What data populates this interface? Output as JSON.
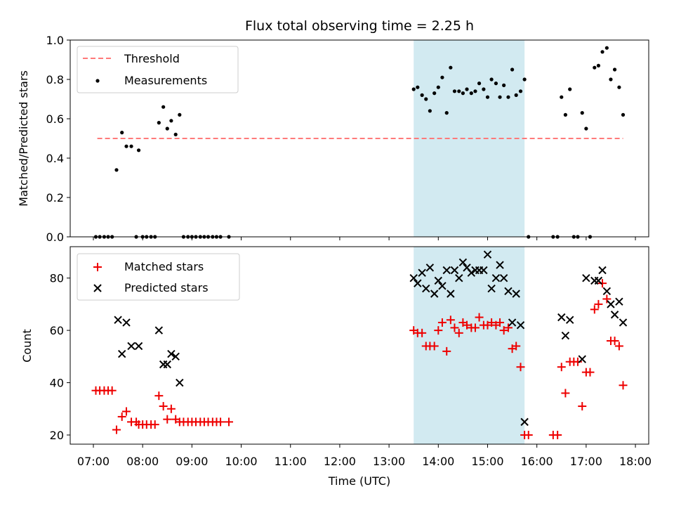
{
  "chart_data": {
    "title": "Flux total observing time = 2.25 h",
    "xlabel": "Time (UTC)",
    "x_ticks": [
      "07:00",
      "08:00",
      "09:00",
      "10:00",
      "11:00",
      "12:00",
      "13:00",
      "14:00",
      "15:00",
      "16:00",
      "17:00",
      "18:00"
    ],
    "x_range_hours": [
      6.53,
      18.27
    ],
    "shaded_span_hours": [
      13.5,
      15.75
    ],
    "colors": {
      "threshold": "#ff7a7a",
      "measurement": "#000000",
      "matched": "#ee0000",
      "predicted": "#000000",
      "span": "#add8e6"
    },
    "panels": [
      {
        "type": "scatter",
        "ylabel": "Matched/Predicted stars",
        "ylim": [
          0,
          1.0
        ],
        "y_ticks": [
          0.0,
          0.2,
          0.4,
          0.6,
          0.8,
          1.0
        ],
        "y_tick_labels": [
          "0.0",
          "0.2",
          "0.4",
          "0.6",
          "0.8",
          "1.0"
        ],
        "legend": [
          "Threshold",
          "Measurements"
        ],
        "threshold": {
          "name": "Threshold",
          "y": 0.5,
          "x_from": 7.08,
          "x_to": 17.75
        },
        "series": [
          {
            "name": "Measurements",
            "points": [
              [
                7.05,
                0
              ],
              [
                7.13,
                0
              ],
              [
                7.22,
                0
              ],
              [
                7.3,
                0
              ],
              [
                7.38,
                0
              ],
              [
                7.47,
                0.34
              ],
              [
                7.58,
                0.53
              ],
              [
                7.67,
                0.46
              ],
              [
                7.77,
                0.46
              ],
              [
                7.87,
                0
              ],
              [
                7.92,
                0.44
              ],
              [
                8.0,
                0
              ],
              [
                8.08,
                0
              ],
              [
                8.17,
                0
              ],
              [
                8.25,
                0
              ],
              [
                8.33,
                0.58
              ],
              [
                8.42,
                0.66
              ],
              [
                8.5,
                0.55
              ],
              [
                8.58,
                0.59
              ],
              [
                8.67,
                0.52
              ],
              [
                8.75,
                0.62
              ],
              [
                8.83,
                0
              ],
              [
                8.92,
                0
              ],
              [
                9.0,
                0
              ],
              [
                9.08,
                0
              ],
              [
                9.17,
                0
              ],
              [
                9.25,
                0
              ],
              [
                9.33,
                0
              ],
              [
                9.42,
                0
              ],
              [
                9.5,
                0
              ],
              [
                9.58,
                0
              ],
              [
                9.75,
                0
              ],
              [
                13.5,
                0.75
              ],
              [
                13.58,
                0.76
              ],
              [
                13.67,
                0.72
              ],
              [
                13.75,
                0.7
              ],
              [
                13.83,
                0.64
              ],
              [
                13.92,
                0.73
              ],
              [
                14.0,
                0.76
              ],
              [
                14.08,
                0.81
              ],
              [
                14.17,
                0.63
              ],
              [
                14.25,
                0.86
              ],
              [
                14.33,
                0.74
              ],
              [
                14.42,
                0.74
              ],
              [
                14.5,
                0.73
              ],
              [
                14.58,
                0.75
              ],
              [
                14.67,
                0.73
              ],
              [
                14.75,
                0.74
              ],
              [
                14.83,
                0.78
              ],
              [
                14.92,
                0.75
              ],
              [
                15.0,
                0.71
              ],
              [
                15.08,
                0.8
              ],
              [
                15.17,
                0.78
              ],
              [
                15.25,
                0.71
              ],
              [
                15.33,
                0.77
              ],
              [
                15.42,
                0.71
              ],
              [
                15.5,
                0.85
              ],
              [
                15.58,
                0.72
              ],
              [
                15.67,
                0.74
              ],
              [
                15.75,
                0.8
              ],
              [
                15.83,
                0
              ],
              [
                16.33,
                0
              ],
              [
                16.42,
                0
              ],
              [
                16.5,
                0.71
              ],
              [
                16.58,
                0.62
              ],
              [
                16.67,
                0.75
              ],
              [
                16.75,
                0
              ],
              [
                16.83,
                0
              ],
              [
                16.92,
                0.63
              ],
              [
                17.0,
                0.55
              ],
              [
                17.08,
                0
              ],
              [
                17.17,
                0.86
              ],
              [
                17.25,
                0.87
              ],
              [
                17.33,
                0.94
              ],
              [
                17.42,
                0.96
              ],
              [
                17.5,
                0.8
              ],
              [
                17.58,
                0.85
              ],
              [
                17.67,
                0.76
              ],
              [
                17.75,
                0.62
              ]
            ]
          }
        ]
      },
      {
        "type": "scatter",
        "ylabel": "Count",
        "ylim": [
          16.5,
          92
        ],
        "y_ticks": [
          20,
          40,
          60,
          80
        ],
        "y_tick_labels": [
          "20",
          "40",
          "60",
          "80"
        ],
        "legend": [
          "Matched stars",
          "Predicted stars"
        ],
        "series": [
          {
            "name": "Matched stars",
            "points": [
              [
                7.05,
                37
              ],
              [
                7.13,
                37
              ],
              [
                7.22,
                37
              ],
              [
                7.3,
                37
              ],
              [
                7.38,
                37
              ],
              [
                7.47,
                22
              ],
              [
                7.58,
                27
              ],
              [
                7.67,
                29
              ],
              [
                7.77,
                25
              ],
              [
                7.87,
                25
              ],
              [
                7.92,
                24
              ],
              [
                8.0,
                24
              ],
              [
                8.08,
                24
              ],
              [
                8.17,
                24
              ],
              [
                8.25,
                24
              ],
              [
                8.33,
                35
              ],
              [
                8.42,
                31
              ],
              [
                8.5,
                26
              ],
              [
                8.58,
                30
              ],
              [
                8.67,
                26
              ],
              [
                8.75,
                25
              ],
              [
                8.83,
                25
              ],
              [
                8.92,
                25
              ],
              [
                9.0,
                25
              ],
              [
                9.08,
                25
              ],
              [
                9.17,
                25
              ],
              [
                9.25,
                25
              ],
              [
                9.33,
                25
              ],
              [
                9.42,
                25
              ],
              [
                9.5,
                25
              ],
              [
                9.58,
                25
              ],
              [
                9.75,
                25
              ],
              [
                13.5,
                60
              ],
              [
                13.58,
                59
              ],
              [
                13.67,
                59
              ],
              [
                13.75,
                54
              ],
              [
                13.83,
                54
              ],
              [
                13.92,
                54
              ],
              [
                14.0,
                60
              ],
              [
                14.08,
                63
              ],
              [
                14.17,
                52
              ],
              [
                14.25,
                64
              ],
              [
                14.33,
                61
              ],
              [
                14.42,
                59
              ],
              [
                14.5,
                63
              ],
              [
                14.58,
                62
              ],
              [
                14.67,
                61
              ],
              [
                14.75,
                61
              ],
              [
                14.83,
                65
              ],
              [
                14.92,
                62
              ],
              [
                15.0,
                62
              ],
              [
                15.08,
                63
              ],
              [
                15.17,
                62
              ],
              [
                15.25,
                63
              ],
              [
                15.33,
                60
              ],
              [
                15.42,
                61
              ],
              [
                15.5,
                53
              ],
              [
                15.58,
                54
              ],
              [
                15.67,
                46
              ],
              [
                15.75,
                20
              ],
              [
                15.83,
                20
              ],
              [
                16.33,
                20
              ],
              [
                16.42,
                20
              ],
              [
                16.5,
                46
              ],
              [
                16.58,
                36
              ],
              [
                16.67,
                48
              ],
              [
                16.75,
                48
              ],
              [
                16.83,
                48
              ],
              [
                16.92,
                31
              ],
              [
                17.0,
                44
              ],
              [
                17.08,
                44
              ],
              [
                17.17,
                68
              ],
              [
                17.25,
                70
              ],
              [
                17.33,
                78
              ],
              [
                17.42,
                72
              ],
              [
                17.5,
                56
              ],
              [
                17.58,
                56
              ],
              [
                17.67,
                54
              ],
              [
                17.75,
                39
              ]
            ]
          },
          {
            "name": "Predicted stars",
            "points": [
              [
                7.5,
                64
              ],
              [
                7.58,
                51
              ],
              [
                7.67,
                63
              ],
              [
                7.77,
                54
              ],
              [
                7.92,
                54
              ],
              [
                8.33,
                60
              ],
              [
                8.42,
                47
              ],
              [
                8.5,
                47
              ],
              [
                8.58,
                51
              ],
              [
                8.67,
                50
              ],
              [
                8.75,
                40
              ],
              [
                13.5,
                80
              ],
              [
                13.58,
                78
              ],
              [
                13.67,
                82
              ],
              [
                13.75,
                76
              ],
              [
                13.83,
                84
              ],
              [
                13.92,
                74
              ],
              [
                14.0,
                79
              ],
              [
                14.08,
                77
              ],
              [
                14.17,
                83
              ],
              [
                14.25,
                74
              ],
              [
                14.33,
                83
              ],
              [
                14.42,
                80
              ],
              [
                14.5,
                86
              ],
              [
                14.58,
                84
              ],
              [
                14.67,
                82
              ],
              [
                14.75,
                83
              ],
              [
                14.83,
                83
              ],
              [
                14.92,
                83
              ],
              [
                15.0,
                89
              ],
              [
                15.08,
                76
              ],
              [
                15.17,
                80
              ],
              [
                15.25,
                85
              ],
              [
                15.33,
                80
              ],
              [
                15.42,
                75
              ],
              [
                15.5,
                63
              ],
              [
                15.58,
                74
              ],
              [
                15.67,
                62
              ],
              [
                15.75,
                25
              ],
              [
                16.5,
                65
              ],
              [
                16.58,
                58
              ],
              [
                16.67,
                64
              ],
              [
                16.92,
                49
              ],
              [
                17.0,
                80
              ],
              [
                17.17,
                79
              ],
              [
                17.25,
                79
              ],
              [
                17.33,
                83
              ],
              [
                17.42,
                75
              ],
              [
                17.5,
                70
              ],
              [
                17.58,
                66
              ],
              [
                17.67,
                71
              ],
              [
                17.75,
                63
              ]
            ]
          }
        ]
      }
    ]
  }
}
